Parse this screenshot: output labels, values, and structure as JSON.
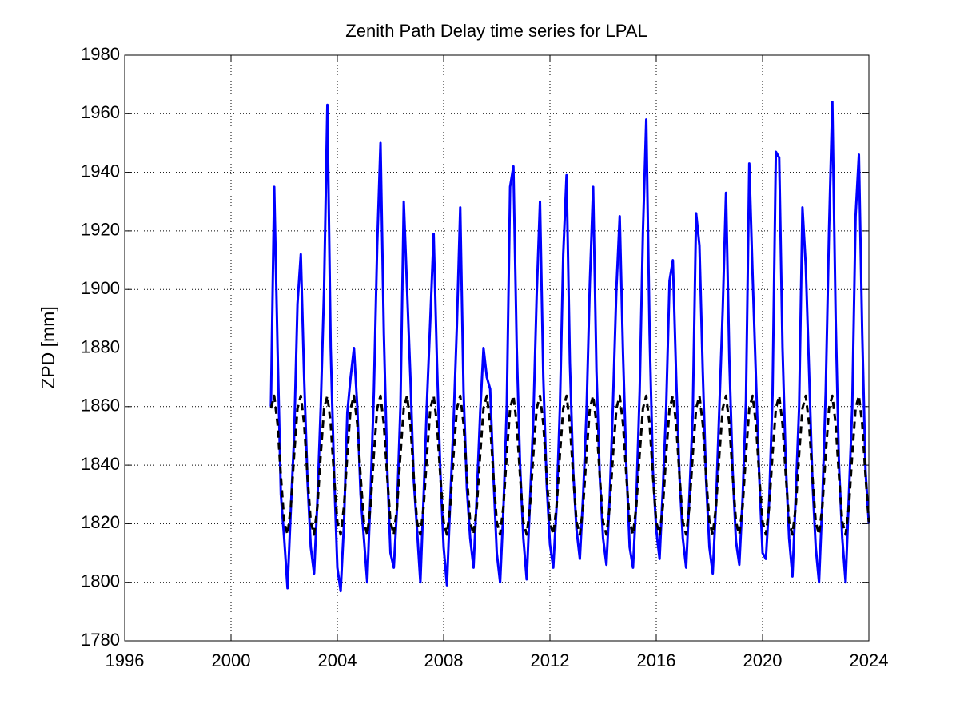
{
  "chart_data": {
    "type": "line",
    "title": "Zenith Path Delay time series for LPAL",
    "y_label": "ZPD [mm]",
    "xlim": [
      1996,
      2024
    ],
    "xticks": [
      1996,
      2000,
      2004,
      2008,
      2012,
      2016,
      2020,
      2024
    ],
    "ylim": [
      1780,
      1980
    ],
    "yticks": [
      1780,
      1800,
      1820,
      1840,
      1860,
      1880,
      1900,
      1920,
      1940,
      1960,
      1980
    ],
    "grid": true,
    "x": [
      2001.5,
      2001.625,
      2001.75,
      2001.875,
      2002,
      2002.125,
      2002.25,
      2002.375,
      2002.5,
      2002.625,
      2002.75,
      2002.875,
      2003,
      2003.125,
      2003.25,
      2003.375,
      2003.5,
      2003.625,
      2003.75,
      2003.875,
      2004,
      2004.125,
      2004.25,
      2004.375,
      2004.5,
      2004.625,
      2004.75,
      2004.875,
      2005,
      2005.125,
      2005.25,
      2005.375,
      2005.5,
      2005.625,
      2005.75,
      2005.875,
      2006,
      2006.125,
      2006.25,
      2006.375,
      2006.5,
      2006.625,
      2006.75,
      2006.875,
      2007,
      2007.125,
      2007.25,
      2007.375,
      2007.5,
      2007.625,
      2007.75,
      2007.875,
      2008,
      2008.125,
      2008.25,
      2008.375,
      2008.5,
      2008.625,
      2008.75,
      2008.875,
      2009,
      2009.125,
      2009.25,
      2009.375,
      2009.5,
      2009.625,
      2009.75,
      2009.875,
      2010,
      2010.125,
      2010.25,
      2010.375,
      2010.5,
      2010.625,
      2010.75,
      2010.875,
      2011,
      2011.125,
      2011.25,
      2011.375,
      2011.5,
      2011.625,
      2011.75,
      2011.875,
      2012,
      2012.125,
      2012.25,
      2012.375,
      2012.5,
      2012.625,
      2012.75,
      2012.875,
      2013,
      2013.125,
      2013.25,
      2013.375,
      2013.5,
      2013.625,
      2013.75,
      2013.875,
      2014,
      2014.125,
      2014.25,
      2014.375,
      2014.5,
      2014.625,
      2014.75,
      2014.875,
      2015,
      2015.125,
      2015.25,
      2015.375,
      2015.5,
      2015.625,
      2015.75,
      2015.875,
      2016,
      2016.125,
      2016.25,
      2016.375,
      2016.5,
      2016.625,
      2016.75,
      2016.875,
      2017,
      2017.125,
      2017.25,
      2017.375,
      2017.5,
      2017.625,
      2017.75,
      2017.875,
      2018,
      2018.125,
      2018.25,
      2018.375,
      2018.5,
      2018.625,
      2018.75,
      2018.875,
      2019,
      2019.125,
      2019.25,
      2019.375,
      2019.5,
      2019.625,
      2019.75,
      2019.875,
      2020,
      2020.125,
      2020.25,
      2020.375,
      2020.5,
      2020.625,
      2020.75,
      2020.875,
      2021,
      2021.125,
      2021.25,
      2021.375,
      2021.5,
      2021.625,
      2021.75,
      2021.875,
      2022,
      2022.125,
      2022.25,
      2022.375,
      2022.5,
      2022.625,
      2022.75,
      2022.875,
      2023,
      2023.125,
      2023.25,
      2023.375,
      2023.5,
      2023.625,
      2023.75,
      2023.875,
      2024
    ],
    "series": [
      {
        "color": "#0000ff",
        "style": "solid",
        "values": [
          1860,
          1935,
          1880,
          1830,
          1815,
          1798,
          1825,
          1850,
          1895,
          1912,
          1870,
          1835,
          1812,
          1803,
          1828,
          1860,
          1900,
          1963,
          1880,
          1838,
          1805,
          1797,
          1820,
          1858,
          1870,
          1880,
          1860,
          1830,
          1815,
          1800,
          1830,
          1865,
          1915,
          1950,
          1885,
          1840,
          1810,
          1805,
          1826,
          1860,
          1930,
          1900,
          1870,
          1835,
          1818,
          1800,
          1830,
          1862,
          1890,
          1919,
          1875,
          1838,
          1812,
          1799,
          1828,
          1855,
          1888,
          1928,
          1865,
          1832,
          1815,
          1805,
          1830,
          1858,
          1880,
          1870,
          1866,
          1836,
          1810,
          1800,
          1825,
          1860,
          1935,
          1942,
          1880,
          1840,
          1815,
          1801,
          1828,
          1856,
          1898,
          1930,
          1870,
          1834,
          1813,
          1805,
          1826,
          1860,
          1912,
          1939,
          1875,
          1838,
          1818,
          1808,
          1830,
          1858,
          1902,
          1935,
          1872,
          1836,
          1815,
          1806,
          1829,
          1862,
          1900,
          1925,
          1878,
          1840,
          1812,
          1805,
          1828,
          1865,
          1920,
          1958,
          1885,
          1838,
          1818,
          1808,
          1832,
          1860,
          1903,
          1910,
          1870,
          1836,
          1815,
          1805,
          1830,
          1858,
          1926,
          1915,
          1872,
          1835,
          1812,
          1803,
          1827,
          1860,
          1893,
          1933,
          1876,
          1838,
          1814,
          1806,
          1829,
          1862,
          1943,
          1905,
          1870,
          1836,
          1810,
          1808,
          1828,
          1864,
          1947,
          1945,
          1880,
          1840,
          1815,
          1802,
          1830,
          1860,
          1928,
          1908,
          1872,
          1835,
          1812,
          1800,
          1828,
          1865,
          1920,
          1964,
          1890,
          1840,
          1815,
          1800,
          1830,
          1860,
          1925,
          1946,
          1885,
          1838,
          1820
        ]
      },
      {
        "color": "#000000",
        "style": "dashed",
        "values": [
          1859.4,
          1863.7,
          1854.1,
          1836.3,
          1820.6,
          1816.3,
          1825.9,
          1843.7,
          1859.4,
          1863.7,
          1854.1,
          1836.3,
          1820.6,
          1816.3,
          1825.9,
          1843.7,
          1859.4,
          1863.7,
          1854.1,
          1836.3,
          1820.6,
          1816.3,
          1825.9,
          1843.7,
          1859.4,
          1863.7,
          1854.1,
          1836.3,
          1820.6,
          1816.3,
          1825.9,
          1843.7,
          1859.4,
          1863.7,
          1854.1,
          1836.3,
          1820.6,
          1816.3,
          1825.9,
          1843.7,
          1859.4,
          1863.7,
          1854.1,
          1836.3,
          1820.6,
          1816.3,
          1825.9,
          1843.7,
          1859.4,
          1863.7,
          1854.1,
          1836.3,
          1820.6,
          1816.3,
          1825.9,
          1843.7,
          1859.4,
          1863.7,
          1854.1,
          1836.3,
          1820.6,
          1816.3,
          1825.9,
          1843.7,
          1859.4,
          1863.7,
          1854.1,
          1836.3,
          1820.6,
          1816.3,
          1825.9,
          1843.7,
          1859.4,
          1863.7,
          1854.1,
          1836.3,
          1820.6,
          1816.3,
          1825.9,
          1843.7,
          1859.4,
          1863.7,
          1854.1,
          1836.3,
          1820.6,
          1816.3,
          1825.9,
          1843.7,
          1859.4,
          1863.7,
          1854.1,
          1836.3,
          1820.6,
          1816.3,
          1825.9,
          1843.7,
          1859.4,
          1863.7,
          1854.1,
          1836.3,
          1820.6,
          1816.3,
          1825.9,
          1843.7,
          1859.4,
          1863.7,
          1854.1,
          1836.3,
          1820.6,
          1816.3,
          1825.9,
          1843.7,
          1859.4,
          1863.7,
          1854.1,
          1836.3,
          1820.6,
          1816.3,
          1825.9,
          1843.7,
          1859.4,
          1863.7,
          1854.1,
          1836.3,
          1820.6,
          1816.3,
          1825.9,
          1843.7,
          1859.4,
          1863.7,
          1854.1,
          1836.3,
          1820.6,
          1816.3,
          1825.9,
          1843.7,
          1859.4,
          1863.7,
          1854.1,
          1836.3,
          1820.6,
          1816.3,
          1825.9,
          1843.7,
          1859.4,
          1863.7,
          1854.1,
          1836.3,
          1820.6,
          1816.3,
          1825.9,
          1843.7,
          1859.4,
          1863.7,
          1854.1,
          1836.3,
          1820.6,
          1816.3,
          1825.9,
          1843.7,
          1859.4,
          1863.7,
          1854.1,
          1836.3,
          1820.6,
          1816.3,
          1825.9,
          1843.7,
          1859.4,
          1863.7,
          1854.1,
          1836.3,
          1820.6,
          1816.3,
          1825.9,
          1843.7,
          1859.4,
          1863.7,
          1854.1,
          1836.3,
          1820.6
        ]
      }
    ]
  }
}
